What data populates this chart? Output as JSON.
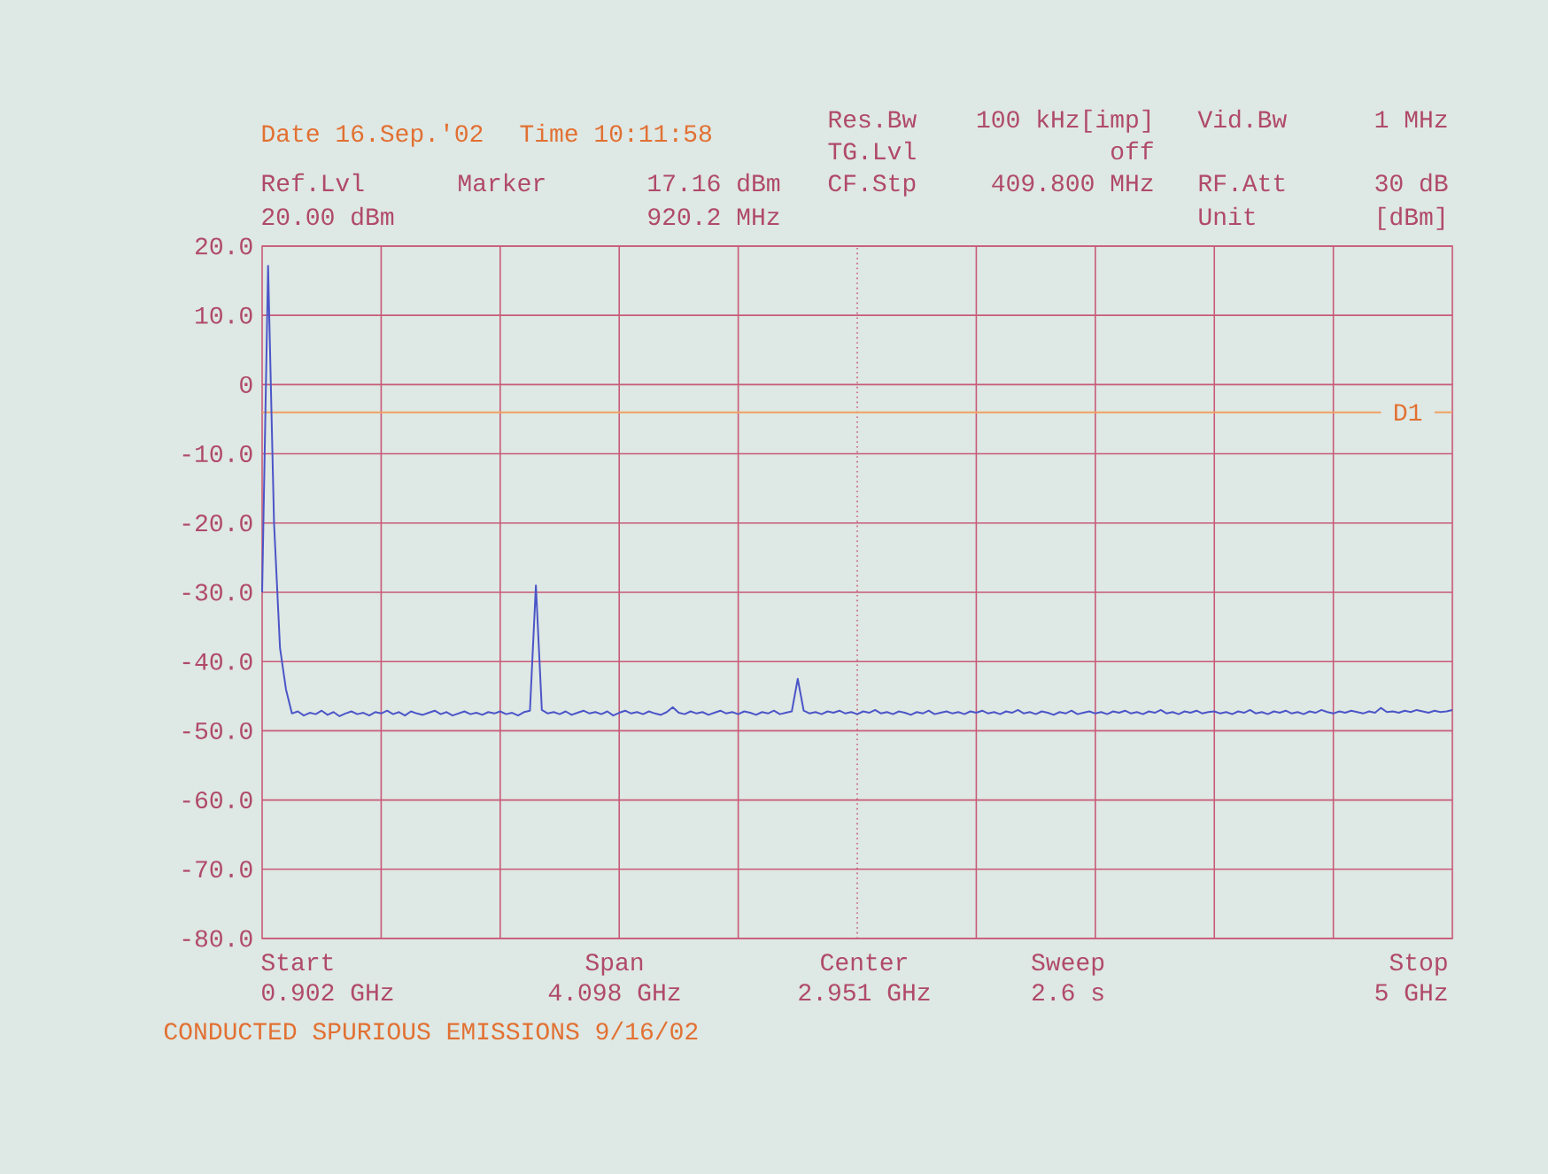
{
  "chart_data": {
    "type": "line",
    "categories": [
      null,
      null,
      null,
      null,
      null,
      null,
      null,
      null,
      null,
      null,
      null,
      null,
      null,
      null,
      null,
      null,
      null,
      null,
      null,
      null,
      null,
      null,
      null,
      null,
      null,
      null,
      null,
      null,
      null,
      null,
      null,
      null,
      null,
      null,
      null,
      null,
      null,
      null,
      null,
      null,
      null,
      null,
      null,
      null,
      null,
      null,
      null,
      null,
      null,
      null,
      null,
      null,
      null,
      null,
      null,
      null,
      null,
      null,
      null,
      null,
      null,
      null,
      null,
      null,
      null,
      null,
      null,
      null,
      null,
      null,
      null,
      null,
      null,
      null,
      null,
      null,
      null,
      null,
      null,
      null,
      null,
      null,
      null,
      null,
      null,
      null,
      null,
      null,
      null,
      null,
      null,
      null,
      null,
      null,
      null,
      null,
      null,
      null,
      null,
      null,
      null,
      null,
      null,
      null,
      null,
      null,
      null,
      null,
      null,
      null,
      null,
      null,
      null,
      null,
      null,
      null,
      null,
      null,
      null,
      null,
      null,
      null,
      null,
      null,
      null,
      null,
      null,
      null,
      null,
      null,
      null,
      null,
      null,
      null,
      null,
      null,
      null,
      null,
      null,
      null,
      null,
      null,
      null,
      null,
      null,
      null,
      null,
      null,
      null,
      null,
      null,
      null,
      null,
      null,
      null,
      null,
      null,
      null,
      null,
      null,
      null,
      null,
      null,
      null,
      null,
      null,
      null,
      null,
      null,
      null,
      null,
      null,
      null,
      null,
      null,
      null,
      null,
      null,
      null,
      null,
      null,
      null,
      null,
      null,
      null,
      null,
      null,
      null,
      null,
      null,
      null,
      null,
      null,
      null,
      null,
      null,
      null,
      null,
      null,
      null,
      null
    ],
    "series": [
      {
        "color": "#4b55c8",
        "values": [
          -30,
          17.16,
          -20,
          -38,
          -44,
          -47.5,
          -47.2,
          -47.8,
          -47.4,
          -47.6,
          -47.1,
          -47.7,
          -47.3,
          -47.9,
          -47.5,
          -47.2,
          -47.6,
          -47.4,
          -47.8,
          -47.3,
          -47.5,
          -47.1,
          -47.6,
          -47.3,
          -47.8,
          -47.2,
          -47.5,
          -47.7,
          -47.4,
          -47.1,
          -47.6,
          -47.3,
          -47.8,
          -47.5,
          -47.2,
          -47.6,
          -47.4,
          -47.7,
          -47.3,
          -47.5,
          -47.2,
          -47.6,
          -47.4,
          -47.8,
          -47.3,
          -47.1,
          -29,
          -47.0,
          -47.5,
          -47.3,
          -47.6,
          -47.2,
          -47.7,
          -47.4,
          -47.1,
          -47.5,
          -47.3,
          -47.6,
          -47.2,
          -47.8,
          -47.4,
          -47.1,
          -47.5,
          -47.3,
          -47.6,
          -47.2,
          -47.5,
          -47.7,
          -47.3,
          -46.6,
          -47.4,
          -47.6,
          -47.2,
          -47.5,
          -47.3,
          -47.7,
          -47.4,
          -47.1,
          -47.5,
          -47.3,
          -47.6,
          -47.2,
          -47.4,
          -47.7,
          -47.3,
          -47.5,
          -47.1,
          -47.6,
          -47.4,
          -47.2,
          -42.5,
          -47.1,
          -47.5,
          -47.3,
          -47.6,
          -47.2,
          -47.4,
          -47.1,
          -47.5,
          -47.3,
          -47.6,
          -47.2,
          -47.4,
          -47.0,
          -47.5,
          -47.3,
          -47.6,
          -47.2,
          -47.4,
          -47.7,
          -47.3,
          -47.5,
          -47.1,
          -47.6,
          -47.4,
          -47.2,
          -47.5,
          -47.3,
          -47.6,
          -47.2,
          -47.4,
          -47.1,
          -47.5,
          -47.3,
          -47.6,
          -47.2,
          -47.4,
          -47.0,
          -47.5,
          -47.3,
          -47.6,
          -47.2,
          -47.4,
          -47.7,
          -47.3,
          -47.5,
          -47.1,
          -47.6,
          -47.4,
          -47.2,
          -47.5,
          -47.3,
          -47.6,
          -47.2,
          -47.4,
          -47.1,
          -47.5,
          -47.3,
          -47.6,
          -47.2,
          -47.4,
          -47.0,
          -47.5,
          -47.3,
          -47.6,
          -47.2,
          -47.4,
          -47.1,
          -47.5,
          -47.3,
          -47.2,
          -47.5,
          -47.3,
          -47.6,
          -47.2,
          -47.4,
          -47.0,
          -47.5,
          -47.3,
          -47.6,
          -47.2,
          -47.4,
          -47.1,
          -47.5,
          -47.3,
          -47.6,
          -47.2,
          -47.4,
          -47.0,
          -47.3,
          -47.5,
          -47.2,
          -47.4,
          -47.1,
          -47.3,
          -47.5,
          -47.2,
          -47.4,
          -46.7,
          -47.3,
          -47.2,
          -47.4,
          -47.1,
          -47.3,
          -47.0,
          -47.2,
          -47.4,
          -47.1,
          -47.3,
          -47.2,
          -47.0
        ]
      }
    ],
    "ylim": [
      -80,
      20
    ],
    "yticks": [
      {
        "value": 20,
        "label": "20.0"
      },
      {
        "value": 10,
        "label": "10.0"
      },
      {
        "value": 0,
        "label": "0"
      },
      {
        "value": -10,
        "label": "-10.0"
      },
      {
        "value": -20,
        "label": "-20.0"
      },
      {
        "value": -30,
        "label": "-30.0"
      },
      {
        "value": -40,
        "label": "-40.0"
      },
      {
        "value": -50,
        "label": "-50.0"
      },
      {
        "value": -60,
        "label": "-60.0"
      },
      {
        "value": -70,
        "label": "-70.0"
      },
      {
        "value": -80,
        "label": "-80.0"
      }
    ],
    "grid": true,
    "ref_lines": [
      {
        "axis": "y",
        "value": -4,
        "label": "D1",
        "color": "#f0a060",
        "line_style": "solid"
      }
    ],
    "annotations": [
      "Date 16.Sep.'02",
      "Time 10:11:58",
      "Ref.Lvl",
      "20.00 dBm",
      "Marker",
      "17.16 dBm",
      "920.2 MHz",
      "Res.Bw",
      "TG.Lvl",
      "CF.Stp",
      "100 kHz[imp]",
      "off",
      "409.800 MHz",
      "Vid.Bw",
      "RF.Att",
      "Unit",
      "1 MHz",
      "30 dB",
      "[dBm]",
      "Start",
      "0.902 GHz",
      "Span",
      "4.098 GHz",
      "Center",
      "2.951 GHz",
      "Sweep",
      "2.6 s",
      "Stop",
      "5 GHz",
      "CONDUCTED SPURIOUS EMISSIONS 9/16/02"
    ]
  }
}
